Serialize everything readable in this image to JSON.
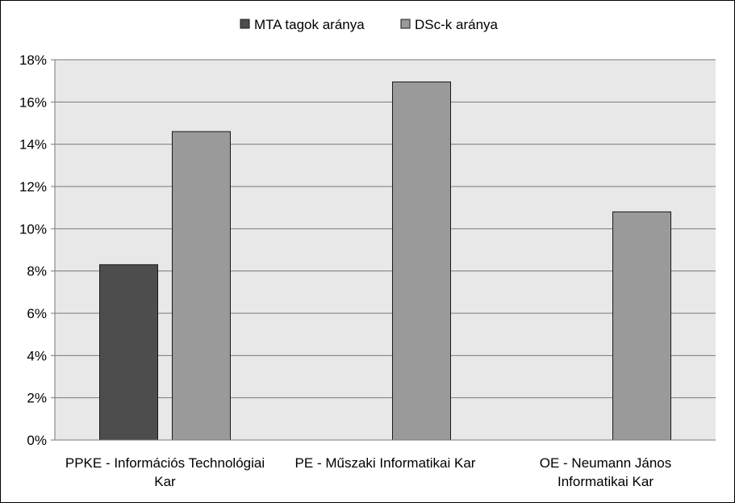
{
  "chart_data": {
    "type": "bar",
    "categories": [
      [
        "PPKE - Információs Technológiai",
        "Kar"
      ],
      [
        "PE - Műszaki Informatikai Kar"
      ],
      [
        "OE - Neumann János",
        "Informatikai Kar"
      ]
    ],
    "series": [
      {
        "name": "MTA tagok aránya",
        "color": "#4d4d4d",
        "values": [
          8.3,
          null,
          null
        ]
      },
      {
        "name": "DSc-k aránya",
        "color": "#9a9a9a",
        "values": [
          14.6,
          16.95,
          10.8
        ]
      }
    ],
    "yticks": [
      "0%",
      "2%",
      "4%",
      "6%",
      "8%",
      "10%",
      "12%",
      "14%",
      "16%",
      "18%"
    ],
    "ylim": [
      0,
      18
    ],
    "ytick_step": 2,
    "grid": true,
    "plot_background": "#e8e8e8",
    "legend_position": "top"
  }
}
